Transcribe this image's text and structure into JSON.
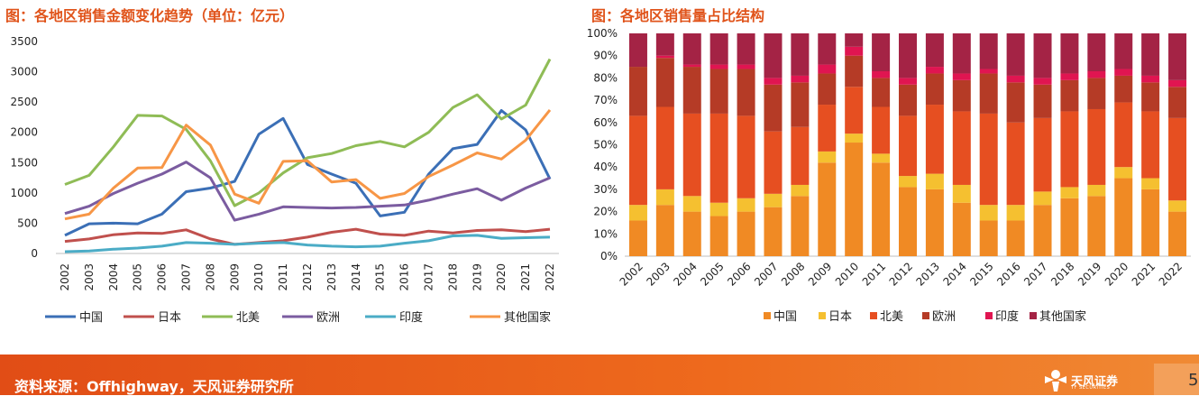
{
  "left_title": "图：各地区销售金额变化趋势（单位：亿元）",
  "right_title": "图：各地区销售量占比结构",
  "footer": {
    "source": "资料来源：Offhighway，天风证券研究所",
    "logo_text": "天风证券",
    "logo_sub": "TF SECURITIES",
    "page_number": "5"
  },
  "chart_data": [
    {
      "type": "line",
      "title": "图：各地区销售金额变化趋势（单位：亿元）",
      "categories": [
        "2002",
        "2003",
        "2004",
        "2005",
        "2006",
        "2007",
        "2008",
        "2009",
        "2010",
        "2011",
        "2012",
        "2013",
        "2014",
        "2015",
        "2016",
        "2017",
        "2018",
        "2019",
        "2020",
        "2021",
        "2022"
      ],
      "ylim": [
        0,
        3500
      ],
      "yticks": [
        0,
        500,
        1000,
        1500,
        2000,
        2500,
        3000,
        3500
      ],
      "grid": false,
      "legend": "bottom",
      "series": [
        {
          "name": "中国",
          "color": "#3b6fb6",
          "values": [
            300,
            490,
            500,
            490,
            650,
            1020,
            1080,
            1190,
            1970,
            2230,
            1470,
            1310,
            1160,
            620,
            680,
            1310,
            1730,
            1800,
            2360,
            2040,
            1230
          ]
        },
        {
          "name": "日本",
          "color": "#c0504d",
          "values": [
            200,
            240,
            310,
            340,
            330,
            390,
            240,
            150,
            180,
            210,
            270,
            350,
            400,
            320,
            300,
            370,
            340,
            380,
            390,
            360,
            400
          ]
        },
        {
          "name": "北美",
          "color": "#8fbc56",
          "values": [
            1140,
            1290,
            1760,
            2280,
            2270,
            2050,
            1530,
            790,
            1000,
            1330,
            1580,
            1650,
            1780,
            1850,
            1760,
            2000,
            2410,
            2620,
            2220,
            2450,
            3210
          ]
        },
        {
          "name": "欧洲",
          "color": "#7b5ca0",
          "values": [
            660,
            780,
            990,
            1160,
            1310,
            1510,
            1250,
            550,
            650,
            770,
            760,
            750,
            760,
            780,
            800,
            880,
            980,
            1070,
            880,
            1080,
            1250
          ]
        },
        {
          "name": "印度",
          "color": "#4bacc6",
          "values": [
            30,
            40,
            70,
            90,
            120,
            180,
            170,
            150,
            170,
            180,
            140,
            120,
            110,
            120,
            170,
            210,
            290,
            300,
            250,
            260,
            270
          ]
        },
        {
          "name": "其他国家",
          "color": "#f79646",
          "values": [
            570,
            650,
            1080,
            1410,
            1420,
            2120,
            1790,
            980,
            830,
            1520,
            1530,
            1180,
            1220,
            910,
            990,
            1270,
            1460,
            1660,
            1560,
            1870,
            2370
          ]
        }
      ]
    },
    {
      "type": "bar",
      "stacked": true,
      "title": "图：各地区销售量占比结构",
      "categories": [
        "2002",
        "2003",
        "2004",
        "2005",
        "2006",
        "2007",
        "2008",
        "2009",
        "2010",
        "2011",
        "2012",
        "2013",
        "2014",
        "2015",
        "2016",
        "2017",
        "2018",
        "2019",
        "2020",
        "2021",
        "2022"
      ],
      "ylim": [
        0,
        100
      ],
      "yticks": [
        0,
        10,
        20,
        30,
        40,
        50,
        60,
        70,
        80,
        90,
        100
      ],
      "grid": false,
      "legend": "bottom",
      "series": [
        {
          "name": "中国",
          "color": "#f08a24",
          "values": [
            16,
            23,
            20,
            18,
            20,
            22,
            27,
            42,
            51,
            42,
            31,
            30,
            24,
            16,
            16,
            23,
            26,
            27,
            35,
            30,
            20
          ]
        },
        {
          "name": "日本",
          "color": "#f5c030",
          "values": [
            7,
            7,
            7,
            6,
            6,
            6,
            5,
            5,
            4,
            4,
            5,
            7,
            8,
            7,
            7,
            6,
            5,
            5,
            5,
            5,
            5
          ]
        },
        {
          "name": "北美",
          "color": "#e64f21",
          "values": [
            40,
            37,
            37,
            40,
            37,
            28,
            26,
            21,
            21,
            21,
            27,
            31,
            33,
            41,
            37,
            33,
            34,
            34,
            29,
            30,
            37
          ]
        },
        {
          "name": "欧洲",
          "color": "#b53b26",
          "values": [
            22,
            22,
            21,
            20,
            21,
            21,
            20,
            14,
            14,
            13,
            14,
            14,
            14,
            18,
            18,
            15,
            14,
            14,
            12,
            13,
            14
          ]
        },
        {
          "name": "印度",
          "color": "#e01551",
          "values": [
            0,
            1,
            1,
            2,
            2,
            3,
            3,
            4,
            4,
            3,
            3,
            3,
            3,
            2,
            3,
            3,
            3,
            3,
            3,
            3,
            3
          ]
        },
        {
          "name": "其他国家",
          "color": "#a42345",
          "values": [
            15,
            10,
            14,
            14,
            14,
            20,
            19,
            14,
            6,
            17,
            20,
            15,
            18,
            16,
            19,
            20,
            18,
            17,
            16,
            19,
            21
          ]
        }
      ]
    }
  ]
}
